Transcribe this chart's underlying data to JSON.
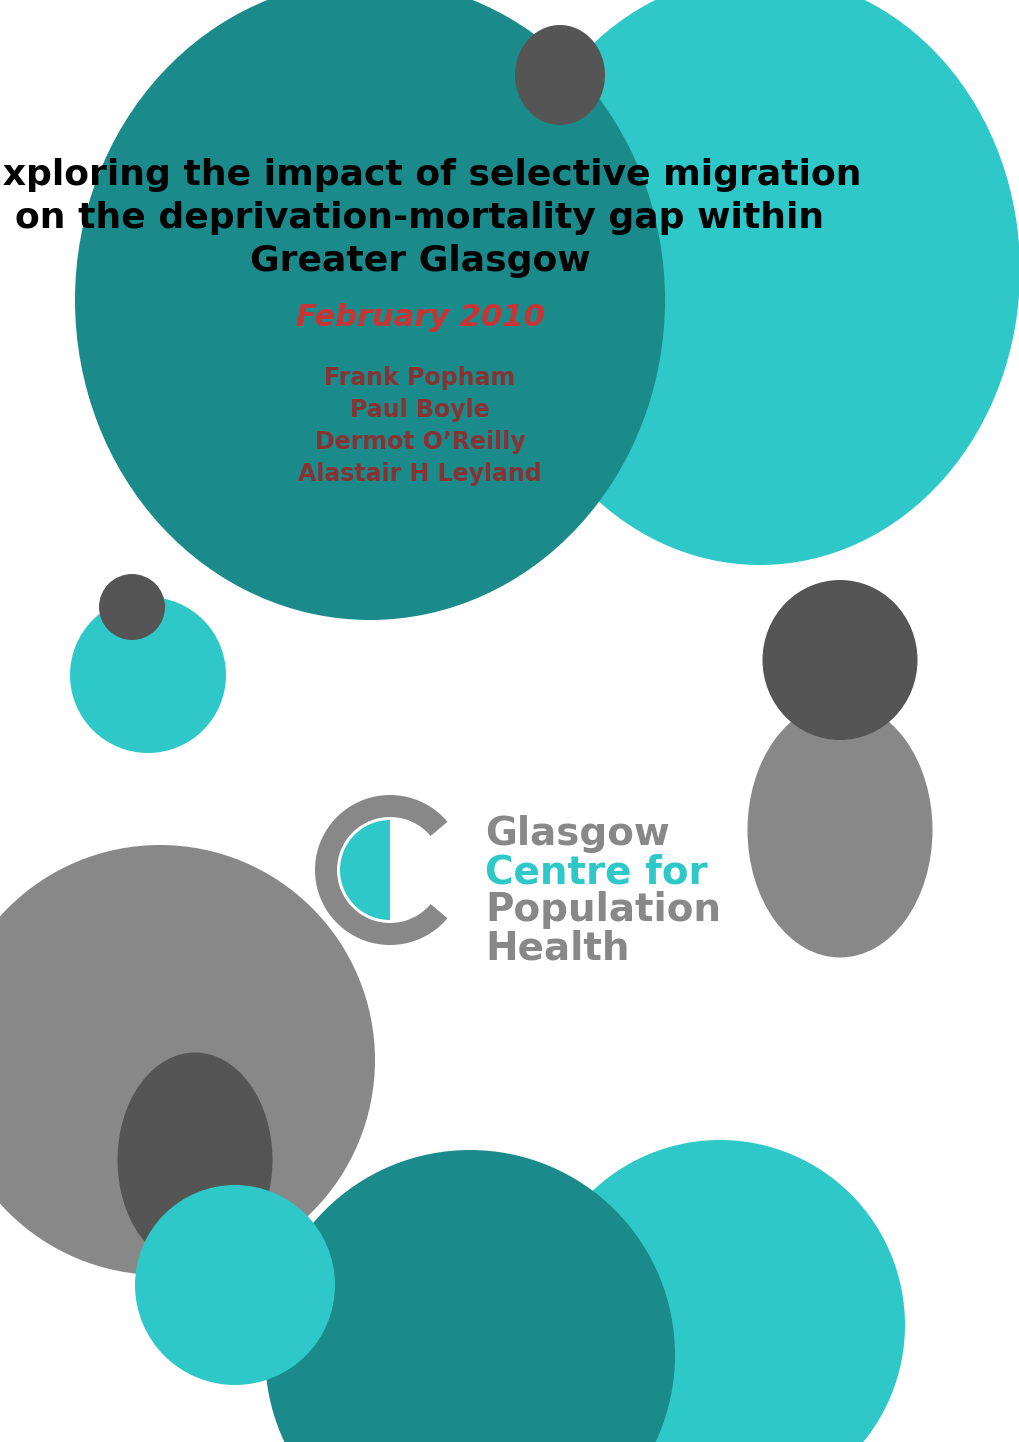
{
  "bg_color": "#ffffff",
  "teal_dark": "#1a8a8a",
  "teal_light": "#2ec8c8",
  "gray_dark": "#555555",
  "gray_mid": "#888888",
  "text_black": "#000000",
  "text_teal_bright": "#2ec8c8",
  "text_date_color": "#c04040",
  "text_author_color": "#8b3333",
  "title_line1": "Exploring the impact of selective migration",
  "title_line2": "on the deprivation-mortality gap within",
  "title_line3": "Greater Glasgow",
  "date": "February 2010",
  "authors": [
    "Frank Popham",
    "Paul Boyle",
    "Dermot O’Reilly",
    "Alastair H Leyland"
  ],
  "logo_text_line1": "Glasgow",
  "logo_text_line2": "Centre for",
  "logo_text_line3": "Population",
  "logo_text_line4": "Health"
}
